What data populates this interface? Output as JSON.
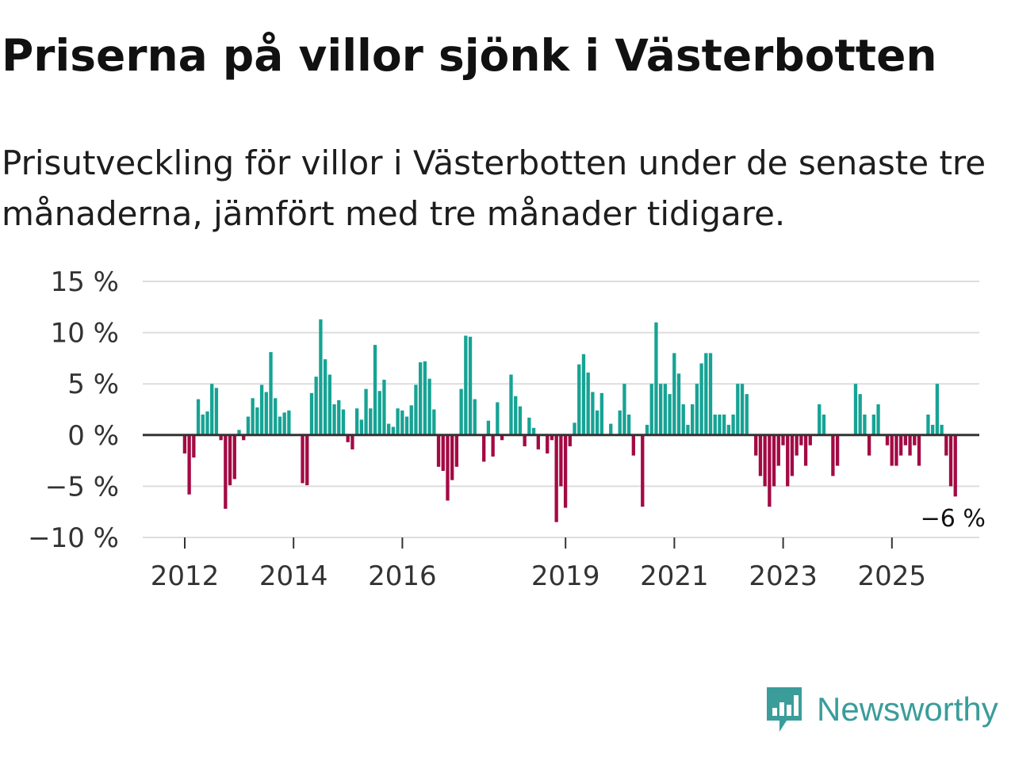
{
  "title": "Priserna på villor sjönk i Västerbotten",
  "subtitle": "Prisutveckling för villor i Västerbotten under de senaste tre månaderna, jämfört med tre månader tidigare.",
  "brand": {
    "name": "Newsworthy",
    "icon": "newsworthy-logo-icon",
    "color": "#3a9d9a"
  },
  "colors": {
    "positive": "#16a394",
    "negative": "#a30a44",
    "grid": "#dddddd",
    "zero": "#333333"
  },
  "chart_data": {
    "type": "bar",
    "title": "Priserna på villor sjönk i Västerbotten",
    "xlabel": "",
    "ylabel": "",
    "ylim": [
      -10,
      15
    ],
    "y_ticks": [
      15,
      10,
      5,
      0,
      -5,
      -10
    ],
    "y_tick_labels": [
      "15 %",
      "10 %",
      "5 %",
      "0 %",
      "−5 %",
      "−10 %"
    ],
    "x_ticks": [
      "2012",
      "2014",
      "2016",
      "2019",
      "2021",
      "2023",
      "2025"
    ],
    "start": "2012-01",
    "frequency": "monthly",
    "last_label": "−6 %",
    "series": [
      {
        "name": "Prisutveckling",
        "values": [
          -1.8,
          -5.8,
          -2.2,
          3.5,
          2,
          2.3,
          5,
          4.6,
          -0.5,
          -7.2,
          -4.9,
          -4.3,
          0.5,
          -0.5,
          1.8,
          3.6,
          2.7,
          4.9,
          4.2,
          8.1,
          3.6,
          1.8,
          2.2,
          2.4,
          0,
          0,
          -4.7,
          -4.9,
          4.1,
          5.7,
          11.3,
          7.4,
          5.9,
          3,
          3.4,
          2.5,
          -0.7,
          -1.4,
          2.6,
          1.5,
          4.5,
          2.6,
          8.8,
          4.3,
          5.4,
          1.1,
          0.8,
          2.6,
          2.4,
          1.8,
          2.9,
          4.9,
          7.1,
          7.2,
          5.5,
          2.5,
          -3.1,
          -3.5,
          -6.4,
          -4.4,
          -3.1,
          4.5,
          9.7,
          9.6,
          3.5,
          0,
          -2.6,
          1.4,
          -2.1,
          3.2,
          -0.5,
          0,
          5.9,
          3.8,
          2.8,
          -1.1,
          1.7,
          0.7,
          -1.4,
          0,
          -1.8,
          -0.5,
          -8.5,
          -5,
          -7.1,
          -1.1,
          1.2,
          6.9,
          7.9,
          6.1,
          4.2,
          2.4,
          4.1,
          0,
          1.1,
          0,
          2.4,
          5,
          2,
          -2,
          0,
          -7,
          1,
          5,
          11,
          5,
          5,
          4,
          8,
          6,
          3,
          1,
          3,
          5,
          7,
          8,
          8,
          2,
          2,
          2,
          1,
          2,
          5,
          5,
          4,
          0,
          -2,
          -4,
          -5,
          -7,
          -5,
          -3,
          -1,
          -5,
          -4,
          -2,
          -1,
          -3,
          -1,
          0,
          3,
          2,
          0,
          -4,
          -3,
          0,
          0,
          0,
          5,
          4,
          2,
          -2,
          2,
          3,
          0,
          -1,
          -3,
          -3,
          -2,
          -1,
          -2,
          -1,
          -3,
          0,
          2,
          1,
          5,
          1,
          -2,
          -5,
          -6
        ]
      }
    ]
  }
}
